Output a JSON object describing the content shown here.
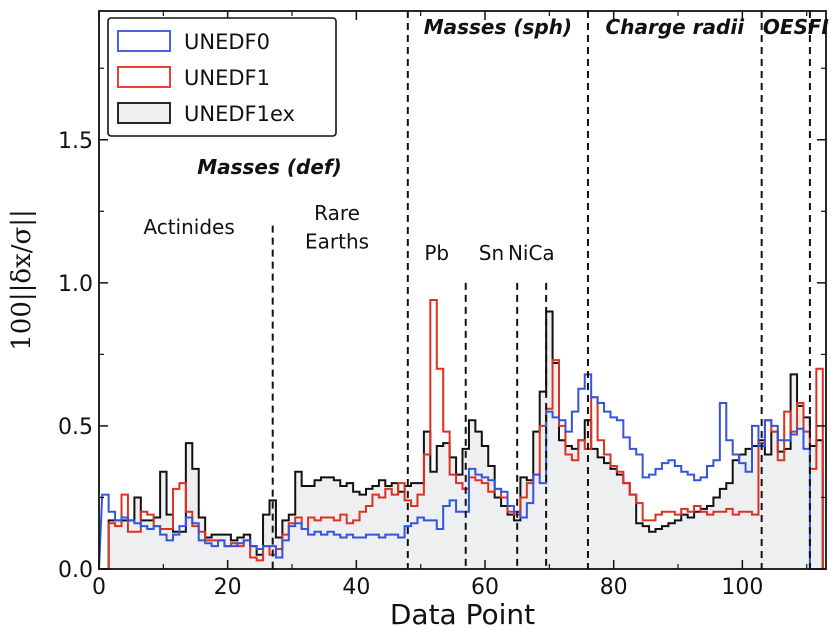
{
  "chart_data": {
    "type": "step-histogram",
    "xlabel": "Data Point",
    "ylabel": "100||δx/σ||",
    "xlim": [
      0,
      113
    ],
    "ylim": [
      0,
      1.95
    ],
    "xticks": [
      0,
      20,
      40,
      60,
      80,
      100
    ],
    "xtick_labels": [
      "0",
      "20",
      "40",
      "60",
      "80",
      "100"
    ],
    "yticks": [
      0.0,
      0.5,
      1.0,
      1.5
    ],
    "ytick_labels": [
      "0.0",
      "0.5",
      "1.0",
      "1.5"
    ],
    "legend_position": "top-left",
    "series": [
      {
        "name": "UNEDF0",
        "color": "#3355dd",
        "fill": "none",
        "values": [
          0.26,
          0.2,
          0.17,
          0.18,
          0.17,
          0.16,
          0.15,
          0.14,
          0.15,
          0.12,
          0.1,
          0.12,
          0.15,
          0.18,
          0.16,
          0.1,
          0.09,
          0.08,
          0.1,
          0.08,
          0.08,
          0.09,
          0.1,
          0.08,
          0.07,
          0.08,
          0.08,
          0.04,
          0.1,
          0.15,
          0.16,
          0.14,
          0.12,
          0.13,
          0.12,
          0.13,
          0.12,
          0.11,
          0.12,
          0.11,
          0.11,
          0.12,
          0.12,
          0.11,
          0.12,
          0.12,
          0.11,
          0.15,
          0.16,
          0.18,
          0.17,
          0.17,
          0.14,
          0.22,
          0.24,
          0.2,
          0.2,
          0.35,
          0.33,
          0.32,
          0.31,
          0.28,
          0.27,
          0.22,
          0.2,
          0.18,
          0.23,
          0.33,
          0.3,
          0.55,
          0.53,
          0.52,
          0.48,
          0.55,
          0.63,
          0.68,
          0.6,
          0.58,
          0.55,
          0.53,
          0.52,
          0.46,
          0.42,
          0.4,
          0.32,
          0.33,
          0.35,
          0.37,
          0.38,
          0.36,
          0.34,
          0.33,
          0.31,
          0.32,
          0.36,
          0.38,
          0.58,
          0.45,
          0.4,
          0.37,
          0.34,
          0.5,
          0.43,
          0.52,
          0.5,
          0.45,
          0.45,
          0.47,
          0.49,
          0.42,
          0.0,
          0.0
        ]
      },
      {
        "name": "UNEDF1",
        "color": "#e03020",
        "fill": "none",
        "values": [
          0.0,
          0.16,
          0.15,
          0.26,
          0.13,
          0.13,
          0.2,
          0.19,
          0.15,
          0.14,
          0.14,
          0.28,
          0.3,
          0.2,
          0.15,
          0.13,
          0.1,
          0.1,
          0.1,
          0.08,
          0.09,
          0.08,
          0.1,
          0.04,
          0.03,
          0.08,
          0.05,
          0.07,
          0.12,
          0.16,
          0.18,
          0.14,
          0.18,
          0.17,
          0.18,
          0.18,
          0.17,
          0.19,
          0.16,
          0.17,
          0.2,
          0.22,
          0.26,
          0.25,
          0.28,
          0.26,
          0.3,
          0.24,
          0.22,
          0.26,
          0.4,
          0.94,
          0.7,
          0.48,
          0.33,
          0.3,
          0.28,
          0.32,
          0.31,
          0.3,
          0.27,
          0.28,
          0.25,
          0.2,
          0.19,
          0.25,
          0.3,
          0.33,
          0.5,
          0.56,
          0.73,
          0.5,
          0.4,
          0.38,
          0.45,
          0.42,
          0.6,
          0.45,
          0.4,
          0.36,
          0.34,
          0.3,
          0.26,
          0.23,
          0.17,
          0.17,
          0.19,
          0.2,
          0.2,
          0.19,
          0.21,
          0.2,
          0.22,
          0.2,
          0.19,
          0.2,
          0.2,
          0.21,
          0.19,
          0.2,
          0.2,
          0.19,
          0.44,
          0.52,
          0.48,
          0.38,
          0.55,
          0.48,
          0.58,
          0.48,
          0.35,
          0.7
        ]
      },
      {
        "name": "UNEDF1ex",
        "color": "#111111",
        "fill": "#eeeff0",
        "values": [
          0.0,
          0.17,
          0.17,
          0.17,
          0.17,
          0.25,
          0.17,
          0.17,
          0.18,
          0.34,
          0.19,
          0.13,
          0.13,
          0.44,
          0.35,
          0.18,
          0.11,
          0.12,
          0.12,
          0.12,
          0.1,
          0.11,
          0.12,
          0.08,
          0.05,
          0.19,
          0.24,
          0.11,
          0.17,
          0.19,
          0.34,
          0.29,
          0.29,
          0.31,
          0.32,
          0.32,
          0.31,
          0.29,
          0.3,
          0.27,
          0.26,
          0.28,
          0.29,
          0.31,
          0.29,
          0.3,
          0.27,
          0.29,
          0.3,
          0.3,
          0.48,
          0.34,
          0.43,
          0.44,
          0.39,
          0.33,
          0.42,
          0.52,
          0.48,
          0.43,
          0.36,
          0.25,
          0.22,
          0.19,
          0.17,
          0.32,
          0.31,
          0.48,
          0.62,
          0.9,
          0.72,
          0.45,
          0.43,
          0.42,
          0.45,
          0.52,
          0.42,
          0.39,
          0.37,
          0.35,
          0.33,
          0.3,
          0.26,
          0.16,
          0.15,
          0.13,
          0.14,
          0.15,
          0.16,
          0.17,
          0.19,
          0.18,
          0.2,
          0.21,
          0.22,
          0.25,
          0.28,
          0.3,
          0.38,
          0.4,
          0.42,
          0.43,
          0.45,
          0.4,
          0.48,
          0.41,
          0.42,
          0.68,
          0.57,
          0.53,
          0.43,
          0.45
        ]
      }
    ],
    "dividers": [
      {
        "x": 48,
        "kind": "full"
      },
      {
        "x": 76,
        "kind": "full"
      },
      {
        "x": 103,
        "kind": "full"
      },
      {
        "x": 110.5,
        "kind": "full"
      },
      {
        "x": 27,
        "kind": "partial",
        "ytop": 1.2
      },
      {
        "x": 57,
        "kind": "partial",
        "ytop": 1.0
      },
      {
        "x": 65,
        "kind": "partial",
        "ytop": 1.0
      },
      {
        "x": 69.5,
        "kind": "partial",
        "ytop": 1.0
      }
    ],
    "section_labels": [
      {
        "text": "Masses (sph)",
        "x": 62,
        "y": 1.87
      },
      {
        "text": "Charge radii",
        "x": 89.5,
        "y": 1.87
      },
      {
        "text": "OES",
        "x": 106.7,
        "y": 1.87
      },
      {
        "text": "FI",
        "x": 111.8,
        "y": 1.87
      },
      {
        "text": "Masses (def)",
        "x": 26.5,
        "y": 1.38
      }
    ],
    "region_labels": [
      {
        "text": "Actinides",
        "x": 14,
        "y": 1.17
      },
      {
        "text": "Rare",
        "x": 37,
        "y": 1.22
      },
      {
        "text": "Earths",
        "x": 37,
        "y": 1.12
      },
      {
        "text": "Pb",
        "x": 52.5,
        "y": 1.08
      },
      {
        "text": "Sn",
        "x": 61,
        "y": 1.08
      },
      {
        "text": "NiCa",
        "x": 67.2,
        "y": 1.08
      }
    ]
  }
}
